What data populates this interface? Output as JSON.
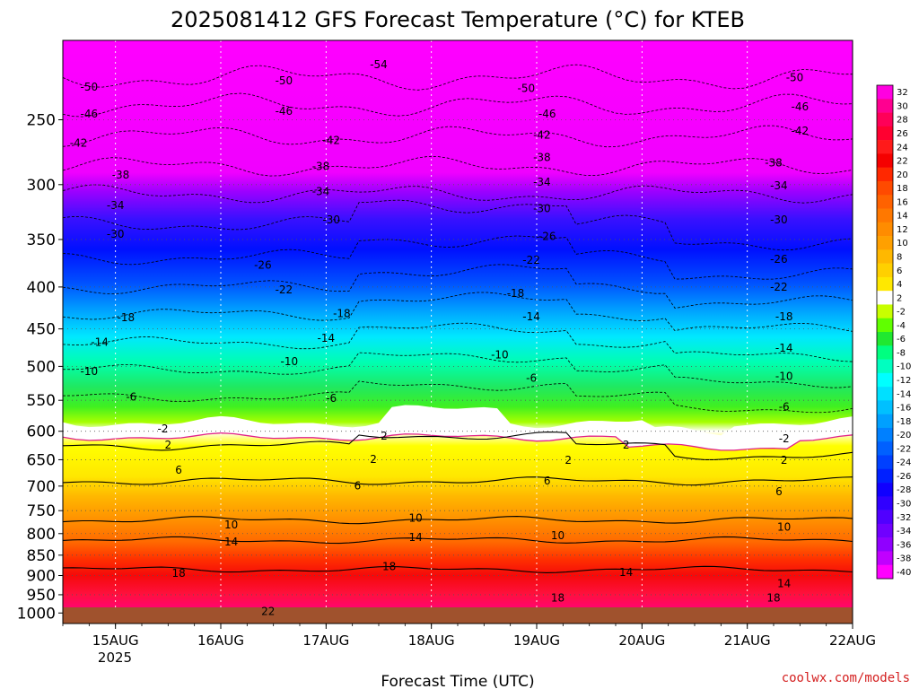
{
  "chart_data": {
    "type": "heatmap",
    "title": "2025081412 GFS Forecast Temperature (°C) for KTEB",
    "xlabel": "Forecast Time (UTC)",
    "ylabel": "",
    "credit": "coolwx.com/models",
    "y_axis": {
      "scale": "log-pressure",
      "inverted": true,
      "range_hpa": [
        1030,
        200
      ],
      "ticks": [
        250,
        300,
        350,
        400,
        450,
        500,
        550,
        600,
        650,
        700,
        750,
        800,
        850,
        900,
        950,
        1000
      ]
    },
    "x_axis": {
      "range_days": [
        "2025-08-14 12Z",
        "2025-08-22 00Z"
      ],
      "ticks": [
        "15AUG",
        "16AUG",
        "17AUG",
        "18AUG",
        "19AUG",
        "20AUG",
        "21AUG",
        "22AUG"
      ],
      "first_tick_year": "2025",
      "grid": "dotted"
    },
    "colorbar": {
      "levels": [
        32,
        30,
        28,
        26,
        24,
        22,
        20,
        18,
        16,
        14,
        12,
        10,
        8,
        6,
        4,
        2,
        -2,
        -4,
        -6,
        -8,
        -10,
        -12,
        -14,
        -16,
        -18,
        -20,
        -22,
        -24,
        -26,
        -28,
        -30,
        -32,
        -34,
        -36,
        -38,
        -40
      ],
      "colors": [
        "#ff00e0",
        "#ff0090",
        "#ff0058",
        "#ff0030",
        "#ff1a1a",
        "#f50000",
        "#ff2800",
        "#ff4a00",
        "#ff6200",
        "#ff7800",
        "#ff8c00",
        "#ffa000",
        "#ffb800",
        "#ffd000",
        "#ffe800",
        "#ffffff",
        "#c8ff00",
        "#60ff00",
        "#20e830",
        "#00ff80",
        "#00ffc0",
        "#00ffff",
        "#00e0ff",
        "#00c0ff",
        "#00a0ff",
        "#0080ff",
        "#0060ff",
        "#0040ff",
        "#0020ff",
        "#1000ff",
        "#3000ff",
        "#5000ff",
        "#7000ff",
        "#9000ff",
        "#c000ff",
        "#ff00ff"
      ]
    },
    "contour_labels": [
      {
        "value": "-54",
        "x": 3.0,
        "p": 214
      },
      {
        "value": "-50",
        "x": 0.25,
        "p": 228
      },
      {
        "value": "-50",
        "x": 2.1,
        "p": 224
      },
      {
        "value": "-50",
        "x": 4.4,
        "p": 229
      },
      {
        "value": "-50",
        "x": 6.95,
        "p": 222
      },
      {
        "value": "-46",
        "x": 0.25,
        "p": 246
      },
      {
        "value": "-46",
        "x": 2.1,
        "p": 244
      },
      {
        "value": "-46",
        "x": 4.6,
        "p": 246
      },
      {
        "value": "-46",
        "x": 7.0,
        "p": 241
      },
      {
        "value": "-42",
        "x": 0.15,
        "p": 267
      },
      {
        "value": "-42",
        "x": 2.55,
        "p": 265
      },
      {
        "value": "-42",
        "x": 4.55,
        "p": 261
      },
      {
        "value": "-42",
        "x": 7.0,
        "p": 258
      },
      {
        "value": "-38",
        "x": 0.55,
        "p": 292
      },
      {
        "value": "-38",
        "x": 2.45,
        "p": 285
      },
      {
        "value": "-38",
        "x": 4.55,
        "p": 278
      },
      {
        "value": "-38",
        "x": 6.75,
        "p": 282
      },
      {
        "value": "-34",
        "x": 0.5,
        "p": 318
      },
      {
        "value": "-34",
        "x": 2.45,
        "p": 306
      },
      {
        "value": "-34",
        "x": 4.55,
        "p": 298
      },
      {
        "value": "-34",
        "x": 6.8,
        "p": 301
      },
      {
        "value": "-30",
        "x": 0.5,
        "p": 345
      },
      {
        "value": "-30",
        "x": 2.55,
        "p": 331
      },
      {
        "value": "-30",
        "x": 4.55,
        "p": 321
      },
      {
        "value": "-30",
        "x": 6.8,
        "p": 331
      },
      {
        "value": "-26",
        "x": 1.9,
        "p": 376
      },
      {
        "value": "-26",
        "x": 4.6,
        "p": 347
      },
      {
        "value": "-26",
        "x": 6.8,
        "p": 370
      },
      {
        "value": "-22",
        "x": 2.1,
        "p": 403
      },
      {
        "value": "-22",
        "x": 4.45,
        "p": 371
      },
      {
        "value": "-22",
        "x": 6.8,
        "p": 400
      },
      {
        "value": "-18",
        "x": 0.6,
        "p": 436
      },
      {
        "value": "-18",
        "x": 2.65,
        "p": 431
      },
      {
        "value": "-18",
        "x": 4.3,
        "p": 407
      },
      {
        "value": "-18",
        "x": 6.85,
        "p": 435
      },
      {
        "value": "-14",
        "x": 0.35,
        "p": 467
      },
      {
        "value": "-14",
        "x": 2.5,
        "p": 462
      },
      {
        "value": "-14",
        "x": 4.45,
        "p": 435
      },
      {
        "value": "-14",
        "x": 6.85,
        "p": 475
      },
      {
        "value": "-10",
        "x": 0.25,
        "p": 507
      },
      {
        "value": "-10",
        "x": 2.15,
        "p": 493
      },
      {
        "value": "-10",
        "x": 4.15,
        "p": 484
      },
      {
        "value": "-10",
        "x": 6.85,
        "p": 514
      },
      {
        "value": "-6",
        "x": 0.65,
        "p": 545
      },
      {
        "value": "-6",
        "x": 2.55,
        "p": 547
      },
      {
        "value": "-6",
        "x": 4.45,
        "p": 517
      },
      {
        "value": "-6",
        "x": 6.85,
        "p": 560
      },
      {
        "value": "-2",
        "x": 0.95,
        "p": 596
      },
      {
        "value": "2",
        "x": 3.05,
        "p": 608
      },
      {
        "value": "2",
        "x": 5.35,
        "p": 624
      },
      {
        "value": "-2",
        "x": 6.85,
        "p": 613
      },
      {
        "value": "2",
        "x": 1.0,
        "p": 624
      },
      {
        "value": "2",
        "x": 2.95,
        "p": 649
      },
      {
        "value": "2",
        "x": 4.8,
        "p": 651
      },
      {
        "value": "2",
        "x": 6.85,
        "p": 651
      },
      {
        "value": "6",
        "x": 1.1,
        "p": 669
      },
      {
        "value": "6",
        "x": 2.8,
        "p": 699
      },
      {
        "value": "6",
        "x": 4.6,
        "p": 690
      },
      {
        "value": "6",
        "x": 6.8,
        "p": 711
      },
      {
        "value": "10",
        "x": 1.6,
        "p": 781
      },
      {
        "value": "10",
        "x": 3.35,
        "p": 766
      },
      {
        "value": "10",
        "x": 4.7,
        "p": 804
      },
      {
        "value": "10",
        "x": 6.85,
        "p": 785
      },
      {
        "value": "14",
        "x": 1.6,
        "p": 819
      },
      {
        "value": "14",
        "x": 3.35,
        "p": 809
      },
      {
        "value": "14",
        "x": 5.35,
        "p": 892
      },
      {
        "value": "14",
        "x": 6.85,
        "p": 921
      },
      {
        "value": "18",
        "x": 1.1,
        "p": 894
      },
      {
        "value": "18",
        "x": 3.1,
        "p": 878
      },
      {
        "value": "18",
        "x": 4.7,
        "p": 958
      },
      {
        "value": "18",
        "x": 6.75,
        "p": 958
      },
      {
        "value": "22",
        "x": 1.95,
        "p": 996
      }
    ]
  }
}
